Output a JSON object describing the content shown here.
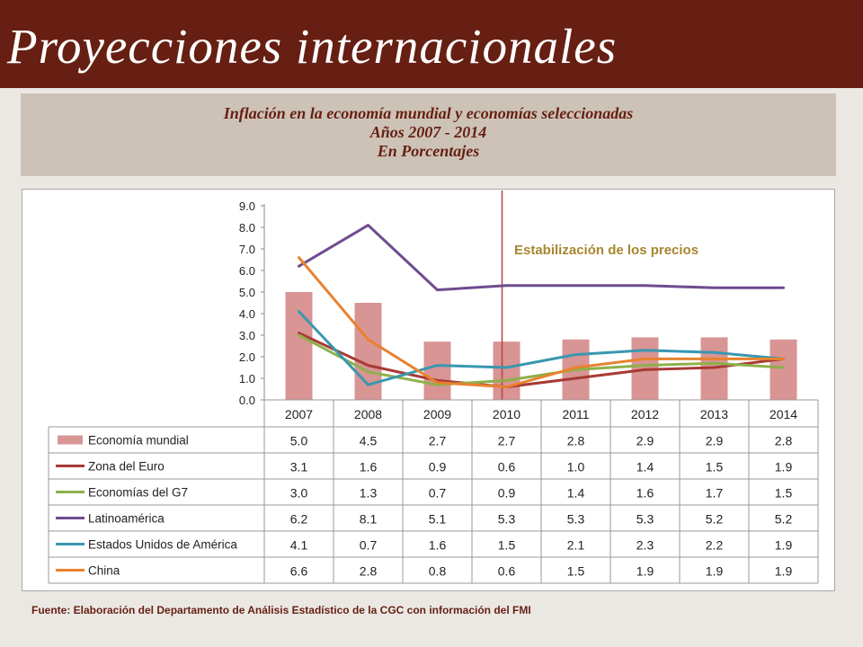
{
  "header": {
    "title": "Proyecciones internacionales"
  },
  "subtitle": {
    "line1": "Inflación en la economía mundial y economías seleccionadas",
    "line2": "Años 2007 - 2014",
    "line3": "En Porcentajes"
  },
  "source": "Fuente:  Elaboración del Departamento de Análisis Estadístico de la CGC con información del FMI",
  "chart_data": {
    "type": "bar",
    "categories": [
      "2007",
      "2008",
      "2009",
      "2010",
      "2011",
      "2012",
      "2013",
      "2014"
    ],
    "ylim": [
      0,
      9
    ],
    "yticks": [
      "0.0",
      "1.0",
      "2.0",
      "3.0",
      "4.0",
      "5.0",
      "6.0",
      "7.0",
      "8.0",
      "9.0"
    ],
    "annotation": "Estabilización de los precios",
    "annotation_line_category": "2010",
    "series": [
      {
        "name": "Economía mundial",
        "type": "bar",
        "color": "#d99494",
        "values": [
          5.0,
          4.5,
          2.7,
          2.7,
          2.8,
          2.9,
          2.9,
          2.8
        ],
        "labels": [
          "5.0",
          "4.5",
          "2.7",
          "2.7",
          "2.8",
          "2.9",
          "2.9",
          "2.8"
        ]
      },
      {
        "name": "Zona del Euro",
        "type": "line",
        "color": "#a83a35",
        "values": [
          3.1,
          1.6,
          0.9,
          0.6,
          1.0,
          1.4,
          1.5,
          1.9
        ],
        "labels": [
          "3.1",
          "1.6",
          "0.9",
          "0.6",
          "1.0",
          "1.4",
          "1.5",
          "1.9"
        ]
      },
      {
        "name": "Economías del G7",
        "type": "line",
        "color": "#8db04a",
        "values": [
          3.0,
          1.3,
          0.7,
          0.9,
          1.4,
          1.6,
          1.7,
          1.5
        ],
        "labels": [
          "3.0",
          "1.3",
          "0.7",
          "0.9",
          "1.4",
          "1.6",
          "1.7",
          "1.5"
        ]
      },
      {
        "name": "Latinoamérica",
        "type": "line",
        "color": "#6e4c8f",
        "values": [
          6.2,
          8.1,
          5.1,
          5.3,
          5.3,
          5.3,
          5.2,
          5.2
        ],
        "labels": [
          "6.2",
          "8.1",
          "5.1",
          "5.3",
          "5.3",
          "5.3",
          "5.2",
          "5.2"
        ]
      },
      {
        "name": "Estados Unidos de América",
        "type": "line",
        "color": "#3a97b0",
        "values": [
          4.1,
          0.7,
          1.6,
          1.5,
          2.1,
          2.3,
          2.2,
          1.9
        ],
        "labels": [
          "4.1",
          "0.7",
          "1.6",
          "1.5",
          "2.1",
          "2.3",
          "2.2",
          "1.9"
        ]
      },
      {
        "name": "China",
        "type": "line",
        "color": "#e8822f",
        "values": [
          6.6,
          2.8,
          0.8,
          0.6,
          1.5,
          1.9,
          1.9,
          1.9
        ],
        "labels": [
          "6.6",
          "2.8",
          "0.8",
          "0.6",
          "1.5",
          "1.9",
          "1.9",
          "1.9"
        ]
      }
    ]
  }
}
